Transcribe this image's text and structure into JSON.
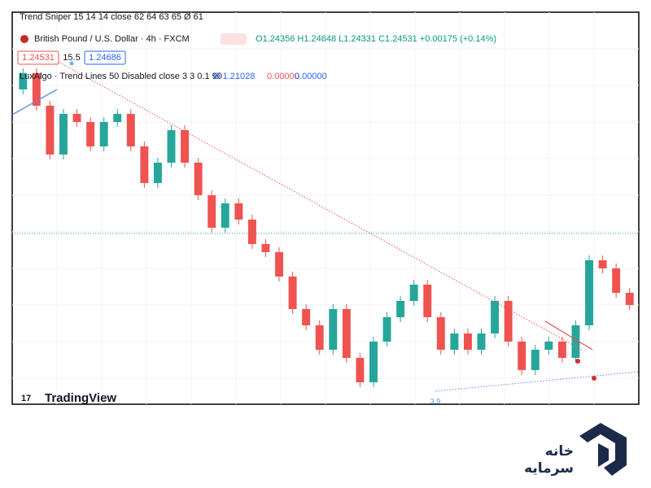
{
  "header": {
    "indicator_1": "Trend Sniper 15 14 14 close 62 64 63 65 Ø 61",
    "symbol": "British Pound / U.S. Dollar · 4h · FXCM",
    "ohlc": "O1.24356 H1.24648 L1.24331 C1.24531 +0.00175 (+0.14%)",
    "sell_price": "1.24531",
    "spread": "15.5",
    "buy_price": "1.24686",
    "indicator_2": "LuxAlgo · Trend Lines 50 Disabled close 3 3 0.1 90",
    "indicator_2_values": [
      "Ø 1.21028",
      "0.00000",
      "0.00000"
    ]
  },
  "chart_data": {
    "type": "candlestick",
    "open": [
      1.2983,
      1.3023,
      1.2943,
      1.2823,
      1.2923,
      1.2903,
      1.2843,
      1.2903,
      1.2923,
      1.2843,
      1.2753,
      1.2803,
      1.2883,
      1.2803,
      1.2723,
      1.2643,
      1.2703,
      1.2663,
      1.2603,
      1.2583,
      1.2523,
      1.2443,
      1.2403,
      1.2343,
      1.2443,
      1.2323,
      1.2263,
      1.2363,
      1.2423,
      1.2463,
      1.2503,
      1.2423,
      1.2343,
      1.2383,
      1.2343,
      1.2383,
      1.2463,
      1.2363,
      1.2293,
      1.2343,
      1.2363,
      1.2323,
      1.2403,
      1.2563,
      1.2543,
      1.2483
    ],
    "high": [
      1.3035,
      1.3035,
      1.2955,
      1.2935,
      1.2935,
      1.2915,
      1.2915,
      1.2935,
      1.2935,
      1.2855,
      1.2815,
      1.2895,
      1.2895,
      1.2815,
      1.2735,
      1.2715,
      1.2715,
      1.2675,
      1.2615,
      1.2595,
      1.2535,
      1.2455,
      1.2415,
      1.2455,
      1.2455,
      1.2335,
      1.2375,
      1.2435,
      1.2475,
      1.2515,
      1.2515,
      1.2435,
      1.2395,
      1.2395,
      1.2395,
      1.2475,
      1.2475,
      1.2375,
      1.2355,
      1.2375,
      1.2375,
      1.2415,
      1.2575,
      1.2575,
      1.2555,
      1.2495
    ],
    "low": [
      1.2971,
      1.2931,
      1.2811,
      1.2811,
      1.2891,
      1.2831,
      1.2831,
      1.2891,
      1.2831,
      1.2741,
      1.2741,
      1.2791,
      1.2791,
      1.2711,
      1.2631,
      1.2631,
      1.2651,
      1.2591,
      1.2571,
      1.2511,
      1.2431,
      1.2391,
      1.2331,
      1.2331,
      1.2311,
      1.2251,
      1.2251,
      1.2351,
      1.2411,
      1.2451,
      1.2411,
      1.2331,
      1.2331,
      1.2331,
      1.2331,
      1.2371,
      1.2351,
      1.2281,
      1.2281,
      1.2331,
      1.2311,
      1.2311,
      1.2391,
      1.2531,
      1.2471,
      1.2441
    ],
    "close": [
      1.3023,
      1.2943,
      1.2823,
      1.2923,
      1.2903,
      1.2843,
      1.2903,
      1.2923,
      1.2843,
      1.2753,
      1.2803,
      1.2883,
      1.2803,
      1.2723,
      1.2643,
      1.2703,
      1.2663,
      1.2603,
      1.2583,
      1.2523,
      1.2443,
      1.2403,
      1.2343,
      1.2443,
      1.2323,
      1.2263,
      1.2363,
      1.2423,
      1.2463,
      1.2503,
      1.2423,
      1.2343,
      1.2383,
      1.2343,
      1.2383,
      1.2463,
      1.2363,
      1.2293,
      1.2343,
      1.2363,
      1.2323,
      1.2403,
      1.2563,
      1.2543,
      1.2483,
      1.2453
    ],
    "up_color": "#26a69a",
    "down_color": "#ef5350",
    "ylim": [
      1.2209,
      1.3173
    ]
  },
  "axis_label": "3.9",
  "watermark": "TradingView",
  "logo": {
    "line1": "خانه",
    "line2": "سرمایه"
  }
}
